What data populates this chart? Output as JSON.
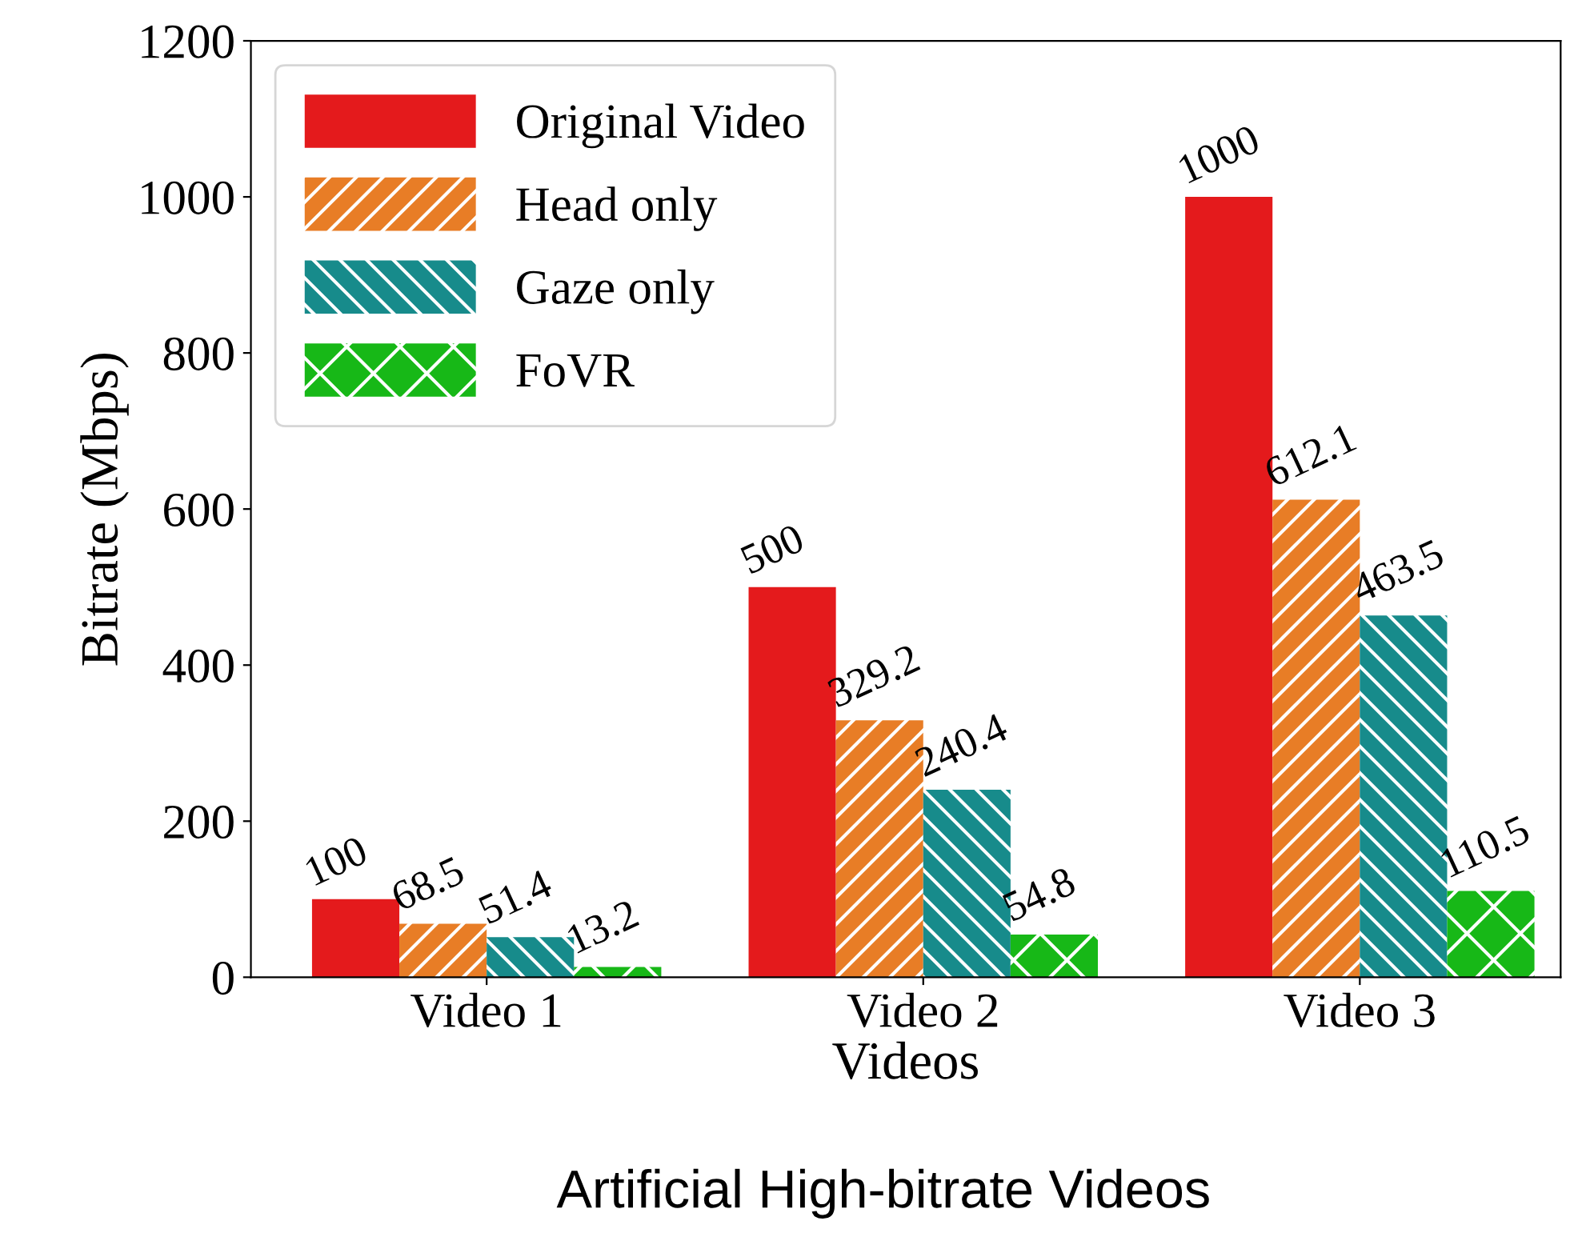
{
  "chart_data": {
    "type": "bar",
    "xlabel": "Videos",
    "ylabel": "Bitrate (Mbps)",
    "categories": [
      "Video 1",
      "Video 2",
      "Video 3"
    ],
    "series": [
      {
        "name": "Original Video",
        "color": "#e41a1c",
        "values": [
          100,
          500,
          1000
        ]
      },
      {
        "name": "Head only",
        "color": "#e87d26",
        "values": [
          68.5,
          329.2,
          612.1
        ]
      },
      {
        "name": "Gaze only",
        "color": "#178b8b",
        "values": [
          51.4,
          240.4,
          463.5
        ]
      },
      {
        "name": "FoVR",
        "color": "#17b817",
        "values": [
          13.2,
          54.8,
          110.5
        ]
      }
    ],
    "ylim": [
      0,
      1200
    ],
    "yticks": [
      0,
      200,
      400,
      600,
      800,
      1000,
      1200
    ],
    "grid": false,
    "legend": "top left",
    "data_labels": true,
    "annotations": [
      "Artificial High-bitrate Videos"
    ]
  }
}
